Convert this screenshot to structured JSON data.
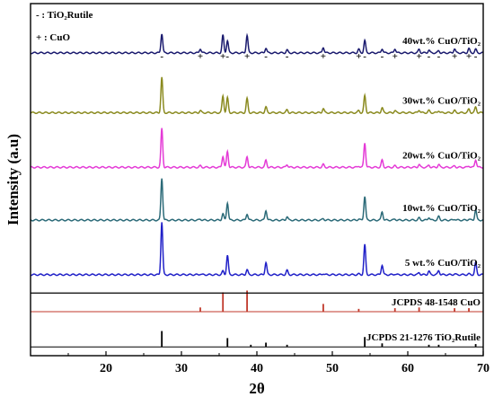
{
  "chart_data": {
    "type": "line",
    "xlabel": "2θ",
    "ylabel": "Intensity (a.u)",
    "xlim": [
      10,
      70
    ],
    "x_ticks": [
      "20",
      "30",
      "40",
      "50",
      "60",
      "70"
    ],
    "x_tick_values": [
      20,
      30,
      40,
      50,
      60,
      70
    ],
    "legend": [
      {
        "symbol": "-",
        "text": ": TiO₂Rutile"
      },
      {
        "symbol": "+",
        "text": ": CuO"
      }
    ],
    "peak_markers": [
      {
        "x": 27.4,
        "symbol": "-"
      },
      {
        "x": 32.5,
        "symbol": "+"
      },
      {
        "x": 35.5,
        "symbol": "+"
      },
      {
        "x": 36.1,
        "symbol": "-"
      },
      {
        "x": 38.7,
        "symbol": "+"
      },
      {
        "x": 41.2,
        "symbol": "-"
      },
      {
        "x": 44.0,
        "symbol": "-"
      },
      {
        "x": 48.8,
        "symbol": "+"
      },
      {
        "x": 53.5,
        "symbol": "+"
      },
      {
        "x": 54.3,
        "symbol": "-"
      },
      {
        "x": 56.6,
        "symbol": "-"
      },
      {
        "x": 58.3,
        "symbol": "+"
      },
      {
        "x": 61.5,
        "symbol": "+"
      },
      {
        "x": 62.8,
        "symbol": "-"
      },
      {
        "x": 64.1,
        "symbol": "-"
      },
      {
        "x": 66.2,
        "symbol": "+"
      },
      {
        "x": 68.1,
        "symbol": "+"
      },
      {
        "x": 69.0,
        "symbol": "-"
      }
    ],
    "series": [
      {
        "name": "40wt.% CuO/TiO₂",
        "color": "#1a1a6e",
        "offset": 0.86,
        "peaks": [
          [
            27.4,
            0.055
          ],
          [
            32.5,
            0.012
          ],
          [
            35.5,
            0.05
          ],
          [
            36.1,
            0.035
          ],
          [
            38.7,
            0.05
          ],
          [
            41.2,
            0.014
          ],
          [
            44.0,
            0.008
          ],
          [
            48.8,
            0.016
          ],
          [
            53.5,
            0.01
          ],
          [
            54.3,
            0.035
          ],
          [
            56.6,
            0.012
          ],
          [
            58.3,
            0.012
          ],
          [
            61.5,
            0.01
          ],
          [
            62.8,
            0.008
          ],
          [
            64.1,
            0.006
          ],
          [
            66.2,
            0.012
          ],
          [
            68.1,
            0.012
          ],
          [
            69.0,
            0.01
          ]
        ]
      },
      {
        "name": "30wt.% CuO/TiO₂",
        "color": "#8a8a1f",
        "offset": 0.69,
        "peaks": [
          [
            27.4,
            0.1
          ],
          [
            32.5,
            0.006
          ],
          [
            35.5,
            0.048
          ],
          [
            36.1,
            0.042
          ],
          [
            38.7,
            0.04
          ],
          [
            41.2,
            0.016
          ],
          [
            44.0,
            0.008
          ],
          [
            48.8,
            0.012
          ],
          [
            53.5,
            0.006
          ],
          [
            54.3,
            0.048
          ],
          [
            56.6,
            0.014
          ],
          [
            58.3,
            0.006
          ],
          [
            61.5,
            0.008
          ],
          [
            62.8,
            0.006
          ],
          [
            64.1,
            0.006
          ],
          [
            66.2,
            0.006
          ],
          [
            68.1,
            0.01
          ],
          [
            69.0,
            0.016
          ]
        ]
      },
      {
        "name": "20wt.% CuO/TiO₂",
        "color": "#e43ad6",
        "offset": 0.535,
        "peaks": [
          [
            27.4,
            0.11
          ],
          [
            32.5,
            0.004
          ],
          [
            35.5,
            0.032
          ],
          [
            36.1,
            0.045
          ],
          [
            38.7,
            0.03
          ],
          [
            41.2,
            0.02
          ],
          [
            44.0,
            0.008
          ],
          [
            48.8,
            0.008
          ],
          [
            53.5,
            0.004
          ],
          [
            54.3,
            0.07
          ],
          [
            56.6,
            0.02
          ],
          [
            58.3,
            0.004
          ],
          [
            61.5,
            0.008
          ],
          [
            62.8,
            0.006
          ],
          [
            64.1,
            0.008
          ],
          [
            66.2,
            0.004
          ],
          [
            68.1,
            0.004
          ],
          [
            69.0,
            0.022
          ]
        ]
      },
      {
        "name": "10wt.% CuO/TiO₂",
        "color": "#2b6a78",
        "offset": 0.385,
        "peaks": [
          [
            27.4,
            0.12
          ],
          [
            32.5,
            0.003
          ],
          [
            35.5,
            0.018
          ],
          [
            36.1,
            0.05
          ],
          [
            38.7,
            0.018
          ],
          [
            41.2,
            0.028
          ],
          [
            44.0,
            0.01
          ],
          [
            48.8,
            0.004
          ],
          [
            53.5,
            0.003
          ],
          [
            54.3,
            0.068
          ],
          [
            56.6,
            0.024
          ],
          [
            58.3,
            0.003
          ],
          [
            61.5,
            0.006
          ],
          [
            62.8,
            0.008
          ],
          [
            64.1,
            0.01
          ],
          [
            66.2,
            0.003
          ],
          [
            68.1,
            0.003
          ],
          [
            69.0,
            0.03
          ]
        ]
      },
      {
        "name": "5 wt.% CuO/TiO₂",
        "color": "#2020c8",
        "offset": 0.23,
        "peaks": [
          [
            27.4,
            0.15
          ],
          [
            32.5,
            0.002
          ],
          [
            35.5,
            0.01
          ],
          [
            36.1,
            0.055
          ],
          [
            38.7,
            0.014
          ],
          [
            41.2,
            0.035
          ],
          [
            44.0,
            0.012
          ],
          [
            48.8,
            0.003
          ],
          [
            53.5,
            0.002
          ],
          [
            54.3,
            0.085
          ],
          [
            56.6,
            0.028
          ],
          [
            58.3,
            0.002
          ],
          [
            61.5,
            0.006
          ],
          [
            62.8,
            0.01
          ],
          [
            64.1,
            0.012
          ],
          [
            66.2,
            0.002
          ],
          [
            68.1,
            0.002
          ],
          [
            69.0,
            0.034
          ]
        ]
      }
    ],
    "references": [
      {
        "name": "JCPDS 48-1548 CuO",
        "color": "#c0392b",
        "offset": 0.125,
        "lines": [
          [
            32.5,
            0.012
          ],
          [
            35.5,
            0.055
          ],
          [
            38.7,
            0.06
          ],
          [
            48.8,
            0.022
          ],
          [
            53.5,
            0.008
          ],
          [
            58.3,
            0.01
          ],
          [
            61.5,
            0.012
          ],
          [
            66.2,
            0.01
          ],
          [
            68.1,
            0.01
          ]
        ]
      },
      {
        "name": "JCPDS 21-1276 TiO₂Rutile",
        "color": "#000000",
        "offset": 0.025,
        "lines": [
          [
            27.4,
            0.045
          ],
          [
            36.1,
            0.025
          ],
          [
            39.2,
            0.006
          ],
          [
            41.2,
            0.012
          ],
          [
            44.0,
            0.006
          ],
          [
            54.3,
            0.028
          ],
          [
            56.6,
            0.01
          ],
          [
            62.8,
            0.006
          ],
          [
            64.1,
            0.006
          ],
          [
            69.0,
            0.008
          ]
        ]
      }
    ]
  }
}
